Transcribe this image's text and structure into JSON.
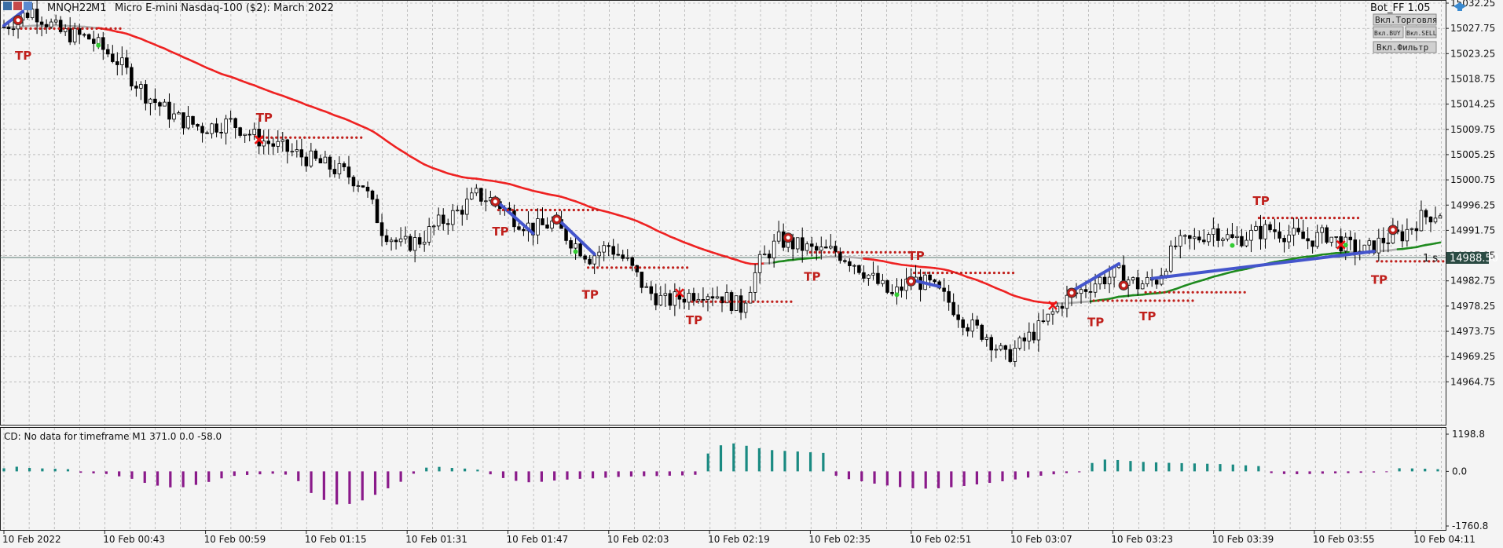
{
  "header": {
    "symbol": "MNQH22",
    "timeframe": "M1",
    "description": "Micro E-mini Nasdaq-100 ($2): March 2022",
    "expert": "Bot_FF 1.05",
    "price_tag": "14988.50",
    "timer": "1 s"
  },
  "buttons": [
    "Вкл.Торговля",
    "Вкл.BUY",
    "Вкл.SELL",
    "Вкл.Фильтр"
  ],
  "subwindow": {
    "caption": "CD: No data for timeframe M1 371.0 0.0 -58.0"
  },
  "colors": {
    "bull": "#ffffff",
    "bear": "#000000",
    "ma_down": "#ee2222",
    "ma_neutral": "#b0b0b0",
    "ma_up": "#1f8a1f",
    "trend_line": "#4455cc",
    "tp": "#c0201c",
    "hist_pos": "#1a8a82",
    "hist_neg": "#8a1a8a",
    "price_tag_bg": "#2a4a42"
  },
  "chart_data": [
    {
      "type": "candlestick",
      "title": "MNQH22,M1",
      "ylim": [
        14962.0,
        15032.25
      ],
      "y_ticks": [
        "15032.25",
        "15027.75",
        "15023.25",
        "15018.75",
        "15014.25",
        "15009.75",
        "15005.25",
        "15000.75",
        "14996.25",
        "14991.75",
        "14987.25",
        "14982.75",
        "14978.25",
        "14973.75",
        "14969.25",
        "14964.75"
      ],
      "x_ticks": [
        "10 Feb 2022",
        "10 Feb 00:43",
        "10 Feb 00:59",
        "10 Feb 01:15",
        "10 Feb 01:31",
        "10 Feb 01:47",
        "10 Feb 02:03",
        "10 Feb 02:19",
        "10 Feb 02:35",
        "10 Feb 02:51",
        "10 Feb 03:07",
        "10 Feb 03:23",
        "10 Feb 03:39",
        "10 Feb 03:55",
        "10 Feb 04:11"
      ],
      "current_price": 14988.5,
      "close_path": [
        [
          0,
          15028
        ],
        [
          6,
          15031
        ],
        [
          12,
          15027
        ],
        [
          18,
          15026
        ],
        [
          24,
          15022
        ],
        [
          30,
          15016
        ],
        [
          36,
          15012
        ],
        [
          42,
          15010
        ],
        [
          48,
          15011
        ],
        [
          54,
          15008
        ],
        [
          60,
          15006
        ],
        [
          66,
          15004
        ],
        [
          72,
          15002
        ],
        [
          76,
          15000
        ],
        [
          80,
          14992
        ],
        [
          84,
          14989
        ],
        [
          88,
          14990
        ],
        [
          92,
          14993
        ],
        [
          96,
          14995
        ],
        [
          100,
          14998
        ],
        [
          104,
          14997
        ],
        [
          108,
          14994
        ],
        [
          112,
          14992
        ],
        [
          116,
          14993
        ],
        [
          120,
          14990
        ],
        [
          124,
          14987
        ],
        [
          128,
          14989
        ],
        [
          132,
          14986
        ],
        [
          136,
          14981
        ],
        [
          140,
          14979
        ],
        [
          144,
          14980
        ],
        [
          148,
          14981
        ],
        [
          152,
          14980
        ],
        [
          156,
          14978
        ],
        [
          160,
          14986
        ],
        [
          164,
          14990
        ],
        [
          168,
          14989
        ],
        [
          172,
          14988
        ],
        [
          176,
          14988
        ],
        [
          180,
          14986
        ],
        [
          184,
          14983
        ],
        [
          188,
          14980
        ],
        [
          192,
          14983
        ],
        [
          196,
          14982
        ],
        [
          200,
          14979
        ],
        [
          204,
          14975
        ],
        [
          208,
          14973
        ],
        [
          212,
          14969
        ],
        [
          216,
          14972
        ],
        [
          220,
          14975
        ],
        [
          224,
          14979
        ],
        [
          228,
          14981
        ],
        [
          232,
          14983
        ],
        [
          236,
          14984
        ],
        [
          240,
          14982
        ],
        [
          244,
          14983
        ],
        [
          248,
          14989
        ],
        [
          252,
          14990
        ],
        [
          256,
          14992
        ],
        [
          260,
          14990
        ],
        [
          264,
          14991
        ],
        [
          268,
          14992
        ],
        [
          272,
          14991
        ],
        [
          276,
          14990
        ],
        [
          280,
          14991
        ],
        [
          284,
          14989
        ],
        [
          288,
          14988
        ],
        [
          292,
          14990
        ],
        [
          296,
          14991
        ],
        [
          300,
          14994
        ],
        [
          304,
          14995
        ]
      ],
      "bars_count": 305
    },
    {
      "type": "bar",
      "title": "CD",
      "ylim": [
        -1760.8,
        1198.8
      ],
      "y_ticks": [
        "1198.8",
        "0.0",
        "-1760.8"
      ],
      "values": [
        100,
        150,
        110,
        95,
        85,
        70,
        -45,
        -65,
        -85,
        -160,
        -240,
        -370,
        -460,
        -515,
        -510,
        -435,
        -340,
        -225,
        -145,
        -115,
        -95,
        -75,
        -105,
        -315,
        -695,
        -920,
        -1065,
        -1050,
        -935,
        -755,
        -545,
        -335,
        -75,
        120,
        145,
        110,
        90,
        55,
        -95,
        -215,
        -305,
        -350,
        -335,
        -295,
        -265,
        -240,
        -225,
        -205,
        -180,
        -165,
        -155,
        -150,
        -140,
        -130,
        -110,
        575,
        840,
        900,
        825,
        745,
        685,
        660,
        640,
        615,
        595,
        -140,
        -250,
        -320,
        -395,
        -455,
        -505,
        -545,
        -555,
        -545,
        -510,
        -470,
        -420,
        -370,
        -320,
        -260,
        -200,
        -140,
        -95,
        -55,
        -30,
        270,
        380,
        365,
        335,
        305,
        290,
        275,
        265,
        255,
        245,
        235,
        220,
        195,
        170,
        -55,
        -85,
        -90,
        -85,
        -75,
        -65,
        -55,
        -45,
        -35,
        -25,
        100,
        95,
        85,
        70
      ]
    }
  ]
}
